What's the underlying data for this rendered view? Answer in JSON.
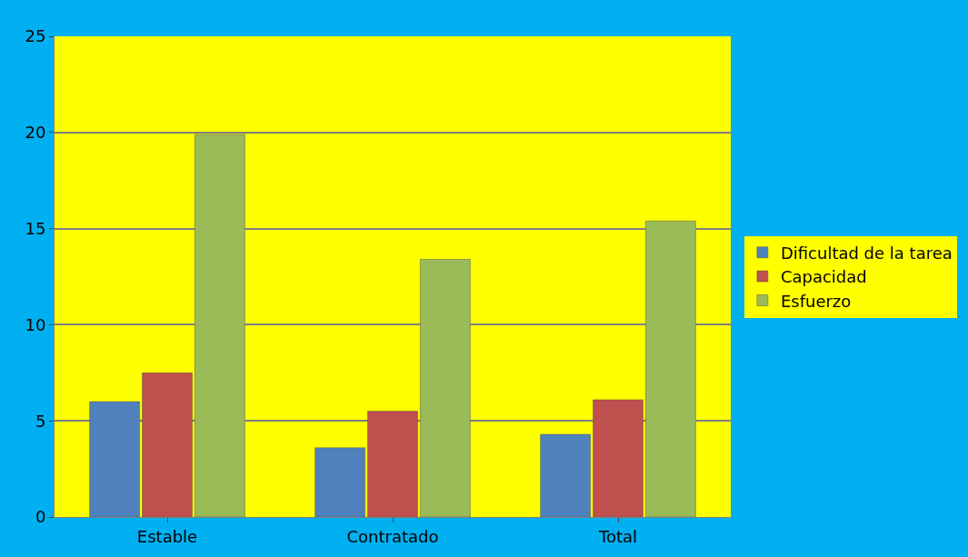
{
  "chart_data": {
    "type": "bar",
    "categories": [
      "Estable",
      "Contratado",
      "Total"
    ],
    "series": [
      {
        "name": "Dificultad de la tarea",
        "color": "#4f81bd",
        "values": [
          6.0,
          3.6,
          4.3
        ]
      },
      {
        "name": "Capacidad",
        "color": "#c0504d",
        "values": [
          7.5,
          5.5,
          6.1
        ]
      },
      {
        "name": "Esfuerzo",
        "color": "#9bbb59",
        "values": [
          19.9,
          13.4,
          15.4
        ]
      }
    ],
    "ylim": [
      0,
      25
    ],
    "yticks": [
      0,
      5,
      10,
      15,
      20,
      25
    ],
    "grid": "y",
    "legend": "right"
  }
}
